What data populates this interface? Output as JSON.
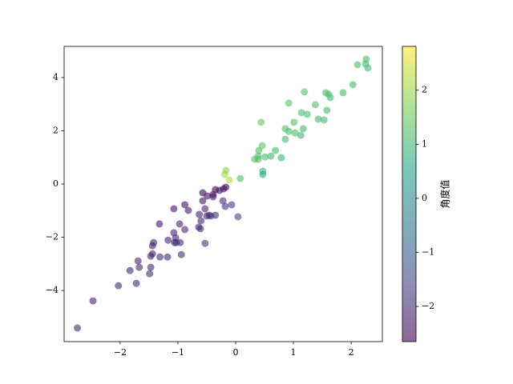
{
  "chart_data": {
    "type": "scatter",
    "x": [
      -2.74,
      -2.47,
      -2.03,
      -1.83,
      -1.72,
      -1.69,
      -1.67,
      -1.49,
      -1.47,
      -1.47,
      -1.44,
      -1.44,
      -1.42,
      -1.32,
      -1.31,
      -1.18,
      -1.17,
      -1.07,
      -1.06,
      -1.04,
      -1.03,
      -0.96,
      -0.94,
      -0.97,
      -1.07,
      -0.88,
      -0.88,
      -0.82,
      -0.63,
      -0.64,
      -0.6,
      -0.61,
      -0.53,
      -0.57,
      -0.57,
      -0.53,
      -0.49,
      -0.5,
      -0.46,
      -0.43,
      -0.35,
      -0.39,
      -0.35,
      -0.39,
      -0.28,
      -0.21,
      -0.17,
      -0.22,
      -0.18,
      -0.07,
      0.04,
      -0.19,
      -0.17,
      -0.11,
      0.08,
      0.33,
      0.39,
      0.4,
      0.39,
      0.46,
      0.44,
      0.47,
      0.47,
      0.51,
      0.61,
      0.69,
      0.79,
      0.86,
      0.86,
      0.92,
      0.92,
      1.01,
      1.03,
      1.13,
      1.14,
      1.17,
      1.19,
      1.24,
      1.38,
      1.43,
      1.53,
      1.56,
      1.58,
      1.61,
      1.64,
      1.86,
      2.03,
      2.11,
      2.25,
      2.26,
      2.29
    ],
    "y": [
      -5.41,
      -4.39,
      -3.82,
      -3.25,
      -3.73,
      -2.89,
      -3.13,
      -3.37,
      -3.13,
      -2.71,
      -2.62,
      -2.32,
      -2.2,
      -1.5,
      -2.74,
      -2.74,
      -2.11,
      -1.83,
      -2.2,
      -2.02,
      -2.2,
      -2.2,
      -2.65,
      -1.5,
      -0.93,
      -1.71,
      -0.78,
      -0.99,
      -1.14,
      -1.62,
      -1.38,
      -1.68,
      -2.23,
      -0.33,
      -0.63,
      -0.93,
      -0.45,
      -1.2,
      -1.17,
      -1.2,
      -1.17,
      -0.48,
      -0.21,
      -0.39,
      -0.24,
      -0.18,
      -0.12,
      -0.63,
      -0.84,
      -0.78,
      -1.23,
      0.36,
      0.51,
      0.15,
      0.21,
      0.93,
      0.93,
      1.26,
      1.05,
      1.44,
      2.32,
      0.48,
      0.36,
      1.02,
      1.05,
      1.26,
      0.99,
      2.08,
      1.68,
      1.98,
      3.04,
      2.32,
      1.92,
      1.83,
      2.68,
      2.08,
      3.46,
      2.62,
      2.98,
      2.44,
      2.41,
      3.43,
      2.77,
      3.37,
      3.25,
      3.43,
      3.73,
      4.48,
      4.51,
      4.69,
      4.36
    ],
    "c": [
      -2.04,
      -2.08,
      -2.06,
      -2.08,
      -2.0,
      -2.1,
      -2.06,
      -1.99,
      -2.01,
      -2.07,
      -2.07,
      -2.12,
      -2.14,
      -2.29,
      -2.02,
      -1.98,
      -2.07,
      -2.1,
      -2.02,
      -2.05,
      -2.01,
      -1.98,
      -1.91,
      -2.14,
      -2.42,
      -2.05,
      -2.41,
      -2.26,
      -2.07,
      -1.95,
      -1.98,
      -1.92,
      -1.8,
      -2.62,
      -2.31,
      -2.09,
      -2.4,
      -1.96,
      -1.95,
      -1.91,
      -1.86,
      -2.25,
      -2.6,
      -2.36,
      -2.43,
      -2.43,
      -2.53,
      -1.91,
      -1.78,
      -1.66,
      -1.54,
      2.06,
      1.89,
      2.2,
      1.21,
      1.23,
      1.17,
      1.26,
      1.22,
      1.26,
      1.38,
      0.8,
      0.65,
      1.11,
      1.04,
      1.07,
      0.9,
      1.18,
      1.1,
      1.14,
      1.28,
      1.16,
      1.08,
      1.02,
      1.17,
      1.06,
      1.24,
      1.13,
      1.14,
      1.04,
      1.0,
      1.14,
      1.05,
      1.12,
      1.1,
      1.07,
      1.07,
      1.13,
      1.11,
      1.12,
      1.09
    ],
    "alpha": 0.6,
    "colormap": [
      "#440154",
      "#414487",
      "#2a788e",
      "#22a884",
      "#7ad151",
      "#fde725"
    ],
    "xlim": [
      -2.97,
      2.54
    ],
    "ylim": [
      -5.92,
      5.17
    ],
    "xticks": [
      {
        "value": -2,
        "label": "−2"
      },
      {
        "value": -1,
        "label": "−1"
      },
      0,
      1,
      2
    ],
    "yticks": [
      {
        "value": -4,
        "label": "−4"
      },
      {
        "value": -2,
        "label": "−2"
      },
      0,
      2,
      4
    ],
    "clim": [
      -2.65,
      2.81
    ],
    "cticks": [
      {
        "value": -2,
        "label": "−2"
      },
      {
        "value": -1,
        "label": "−1"
      },
      0,
      1,
      2
    ],
    "colorbar_label": "角度值"
  }
}
